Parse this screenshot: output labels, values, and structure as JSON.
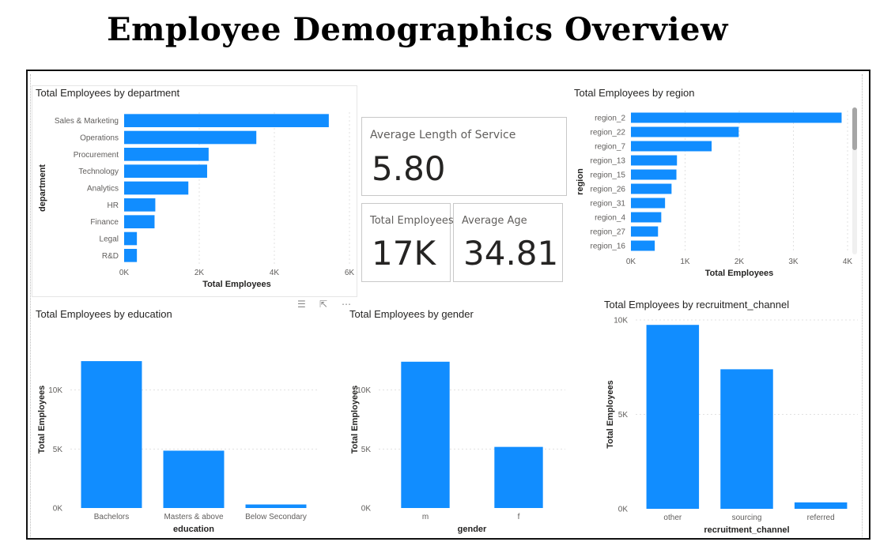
{
  "page": {
    "title": "Employee Demographics Overview"
  },
  "colors": {
    "bar": "#118DFF",
    "grid": "#e1e1e1",
    "axis_text": "#605e5c",
    "title_text": "#252423"
  },
  "cards": {
    "avg_service": {
      "label": "Average Length of Service",
      "value": "5.80"
    },
    "total_employees": {
      "label": "Total Employees",
      "value": "17K"
    },
    "avg_age": {
      "label": "Average Age",
      "value": "34.81"
    }
  },
  "toolbar_icons": [
    "filter-icon",
    "focus-mode-icon",
    "more-options-icon"
  ],
  "chart_data": [
    {
      "id": "dept",
      "type": "bar",
      "orientation": "horizontal",
      "title": "Total Employees by department",
      "xlabel": "Total Employees",
      "ylabel": "department",
      "categories": [
        "Sales & Marketing",
        "Operations",
        "Procurement",
        "Technology",
        "Analytics",
        "HR",
        "Finance",
        "Legal",
        "R&D"
      ],
      "values": [
        5450,
        3520,
        2250,
        2210,
        1710,
        830,
        810,
        340,
        340
      ],
      "xlim": [
        0,
        6000
      ],
      "xticks": [
        0,
        2000,
        4000,
        6000
      ],
      "xtick_labels": [
        "0K",
        "2K",
        "4K",
        "6K"
      ],
      "grid": true
    },
    {
      "id": "region",
      "type": "bar",
      "orientation": "horizontal",
      "title": "Total Employees by region",
      "xlabel": "Total Employees",
      "ylabel": "region",
      "categories": [
        "region_2",
        "region_22",
        "region_7",
        "region_13",
        "region_15",
        "region_26",
        "region_31",
        "region_4",
        "region_27",
        "region_16"
      ],
      "values": [
        3890,
        1990,
        1490,
        850,
        840,
        750,
        630,
        560,
        500,
        440
      ],
      "xlim": [
        0,
        4000
      ],
      "xticks": [
        0,
        1000,
        2000,
        3000,
        4000
      ],
      "xtick_labels": [
        "0K",
        "1K",
        "2K",
        "3K",
        "4K"
      ],
      "grid": true
    },
    {
      "id": "education",
      "type": "bar",
      "orientation": "vertical",
      "title": "Total Employees by education",
      "xlabel": "education",
      "ylabel": "Total Employees",
      "categories": [
        "Bachelors",
        "Masters & above",
        "Below Secondary"
      ],
      "values": [
        12450,
        4860,
        300
      ],
      "ylim": [
        0,
        15000
      ],
      "yticks": [
        0,
        5000,
        10000
      ],
      "ytick_labels": [
        "0K",
        "5K",
        "10K"
      ],
      "grid": true
    },
    {
      "id": "gender",
      "type": "bar",
      "orientation": "vertical",
      "title": "Total Employees by gender",
      "xlabel": "gender",
      "ylabel": "Total Employees",
      "categories": [
        "m",
        "f"
      ],
      "values": [
        12400,
        5180
      ],
      "ylim": [
        0,
        15000
      ],
      "yticks": [
        0,
        5000,
        10000
      ],
      "ytick_labels": [
        "0K",
        "5K",
        "10K"
      ],
      "grid": true
    },
    {
      "id": "recruit",
      "type": "bar",
      "orientation": "vertical",
      "title": "Total Employees by recruitment_channel",
      "xlabel": "recruitment_channel",
      "ylabel": "Total Employees",
      "categories": [
        "other",
        "sourcing",
        "referred"
      ],
      "values": [
        9740,
        7390,
        340
      ],
      "ylim": [
        0,
        10000
      ],
      "yticks": [
        0,
        5000,
        10000
      ],
      "ytick_labels": [
        "0K",
        "5K",
        "10K"
      ],
      "grid": true
    }
  ]
}
